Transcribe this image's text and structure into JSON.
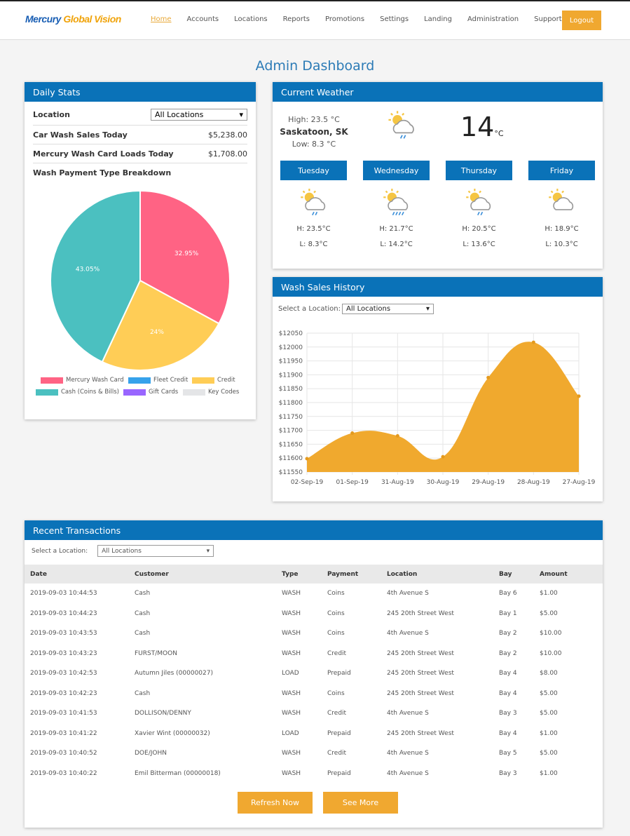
{
  "nav": {
    "logo_part1": "Mercury",
    "logo_part2": "Global Vision",
    "items": [
      "Home",
      "Accounts",
      "Locations",
      "Reports",
      "Promotions",
      "Settings",
      "Landing",
      "Administration",
      "Support"
    ],
    "active": "Home",
    "logout": "Logout"
  },
  "page_title": "Admin Dashboard",
  "daily": {
    "title": "Daily Stats",
    "location_label": "Location",
    "location_value": "All Locations",
    "car_wash_label": "Car Wash Sales Today",
    "car_wash_value": "$5,238.00",
    "card_loads_label": "Mercury Wash Card Loads Today",
    "card_loads_value": "$1,708.00",
    "breakdown_label": "Wash Payment Type Breakdown"
  },
  "chart_data": [
    {
      "type": "pie",
      "title": "",
      "slices": [
        {
          "name": "Mercury Wash Card",
          "value": 32.95,
          "label": "32.95%",
          "color": "#ff6384"
        },
        {
          "name": "Fleet Credit",
          "value": 0,
          "color": "#36a2eb"
        },
        {
          "name": "Credit",
          "value": 24,
          "label": "24%",
          "color": "#ffcd56"
        },
        {
          "name": "Cash (Coins & Bills)",
          "value": 43.05,
          "label": "43.05%",
          "color": "#4bc0c0"
        },
        {
          "name": "Gift Cards",
          "value": 0,
          "color": "#9966ff"
        },
        {
          "name": "Key Codes",
          "value": 0,
          "color": "#e4e5e7"
        }
      ]
    },
    {
      "type": "area",
      "title": "",
      "categories": [
        "02-Sep-19",
        "01-Sep-19",
        "31-Aug-19",
        "30-Aug-19",
        "29-Aug-19",
        "28-Aug-19",
        "27-Aug-19"
      ],
      "values": [
        11598,
        11690,
        11680,
        11605,
        11890,
        12017,
        11823
      ],
      "ylim": [
        11550,
        12050
      ],
      "yticks": [
        "$12050",
        "$12000",
        "$11950",
        "$11900",
        "$11850",
        "$11800",
        "$11750",
        "$11700",
        "$11650",
        "$11600",
        "$11550"
      ],
      "color": "#f0a92e",
      "grid": true
    }
  ],
  "weather": {
    "title": "Current Weather",
    "high": "High: 23.5 °C",
    "city": "Saskatoon, SK",
    "low": "Low: 8.3 °C",
    "temp": "14",
    "unit": "°C",
    "icon": "sun-cloud-rain-icon",
    "days": [
      {
        "name": "Tuesday",
        "high": "H: 23.5°C",
        "low": "L: 8.3°C",
        "icon": "sun-cloud-rain-icon"
      },
      {
        "name": "Wednesday",
        "high": "H: 21.7°C",
        "low": "L: 14.2°C",
        "icon": "sun-cloud-heavy-rain-icon"
      },
      {
        "name": "Thursday",
        "high": "H: 20.5°C",
        "low": "L: 13.6°C",
        "icon": "sun-cloud-rain-icon"
      },
      {
        "name": "Friday",
        "high": "H: 18.9°C",
        "low": "L: 10.3°C",
        "icon": "sun-cloud-icon"
      }
    ]
  },
  "history": {
    "title": "Wash Sales History",
    "select_label": "Select a Location:",
    "select_value": "All Locations"
  },
  "transactions": {
    "title": "Recent Transactions",
    "select_label": "Select a Location:",
    "select_value": "All Locations",
    "columns": [
      "Date",
      "Customer",
      "Type",
      "Payment",
      "Location",
      "Bay",
      "Amount"
    ],
    "rows": [
      [
        "2019-09-03 10:44:53",
        "Cash",
        "WASH",
        "Coins",
        "4th Avenue S",
        "Bay 6",
        "$1.00"
      ],
      [
        "2019-09-03 10:44:23",
        "Cash",
        "WASH",
        "Coins",
        "245 20th Street West",
        "Bay 1",
        "$5.00"
      ],
      [
        "2019-09-03 10:43:53",
        "Cash",
        "WASH",
        "Coins",
        "4th Avenue S",
        "Bay 2",
        "$10.00"
      ],
      [
        "2019-09-03 10:43:23",
        "FURST/MOON",
        "WASH",
        "Credit",
        "245 20th Street West",
        "Bay 2",
        "$10.00"
      ],
      [
        "2019-09-03 10:42:53",
        "Autumn Jiles (00000027)",
        "LOAD",
        "Prepaid",
        "245 20th Street West",
        "Bay 4",
        "$8.00"
      ],
      [
        "2019-09-03 10:42:23",
        "Cash",
        "WASH",
        "Coins",
        "245 20th Street West",
        "Bay 4",
        "$5.00"
      ],
      [
        "2019-09-03 10:41:53",
        "DOLLISON/DENNY",
        "WASH",
        "Credit",
        "4th Avenue S",
        "Bay 3",
        "$5.00"
      ],
      [
        "2019-09-03 10:41:22",
        "Xavier Wint (00000032)",
        "LOAD",
        "Prepaid",
        "245 20th Street West",
        "Bay 4",
        "$1.00"
      ],
      [
        "2019-09-03 10:40:52",
        "DOE/JOHN",
        "WASH",
        "Credit",
        "4th Avenue S",
        "Bay 5",
        "$5.00"
      ],
      [
        "2019-09-03 10:40:22",
        "Emil Bitterman (00000018)",
        "WASH",
        "Prepaid",
        "4th Avenue S",
        "Bay 3",
        "$1.00"
      ]
    ],
    "refresh": "Refresh Now",
    "more": "See More"
  }
}
